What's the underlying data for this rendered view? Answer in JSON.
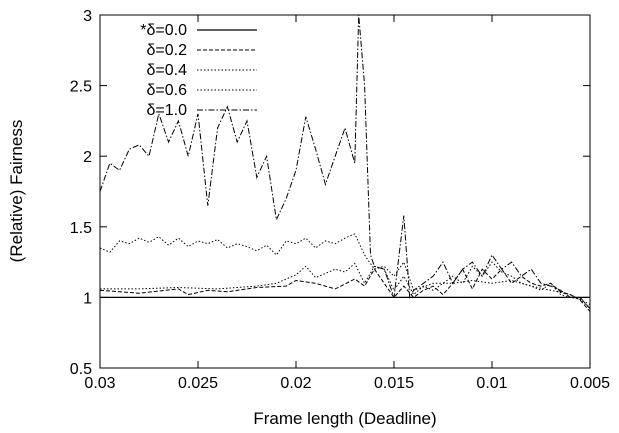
{
  "chart_data": {
    "type": "line",
    "xlabel": "Frame length (Deadline)",
    "ylabel": "(Relative) Fairness",
    "xlim": [
      0.03,
      0.005
    ],
    "ylim": [
      0.5,
      3
    ],
    "x_reversed": true,
    "grid": false,
    "legend_position": "top-left",
    "x_ticks": [
      0.03,
      0.025,
      0.02,
      0.015,
      0.01,
      0.005
    ],
    "x_tick_labels": [
      "0.03",
      "0.025",
      "0.02",
      "0.015",
      "0.01",
      "0.005"
    ],
    "y_ticks": [
      0.5,
      1,
      1.5,
      2,
      2.5,
      3
    ],
    "y_tick_labels": [
      "0.5",
      "1",
      "1.5",
      "2",
      "2.5",
      "3"
    ],
    "series": [
      {
        "name": "*δ=0.0",
        "dash": "solid",
        "x": [
          0.03,
          0.005
        ],
        "y": [
          1.0,
          1.0
        ]
      },
      {
        "name": "δ=0.2",
        "dash": "dashed",
        "x": [
          0.03,
          0.028,
          0.026,
          0.0255,
          0.0245,
          0.0235,
          0.022,
          0.0205,
          0.02,
          0.019,
          0.018,
          0.017,
          0.0165,
          0.016,
          0.0155,
          0.015,
          0.0145,
          0.014,
          0.0135,
          0.013,
          0.0125,
          0.012,
          0.0115,
          0.011,
          0.0105,
          0.01,
          0.0095,
          0.009,
          0.0085,
          0.008,
          0.0075,
          0.007,
          0.0065,
          0.006,
          0.0055,
          0.005
        ],
        "y": [
          1.05,
          1.03,
          1.06,
          1.02,
          1.05,
          1.04,
          1.07,
          1.08,
          1.12,
          1.1,
          1.06,
          1.13,
          1.08,
          1.2,
          1.1,
          1.0,
          1.08,
          1.0,
          1.05,
          1.08,
          1.02,
          1.1,
          1.2,
          1.06,
          1.2,
          1.13,
          1.2,
          1.1,
          1.15,
          1.1,
          1.08,
          1.1,
          1.04,
          1.02,
          0.98,
          0.9
        ]
      },
      {
        "name": "δ=0.4",
        "dash": "dotted",
        "x": [
          0.03,
          0.028,
          0.026,
          0.024,
          0.022,
          0.021,
          0.02,
          0.0195,
          0.019,
          0.018,
          0.0175,
          0.017,
          0.0165,
          0.016,
          0.0155,
          0.015,
          0.0145,
          0.014,
          0.0135,
          0.013,
          0.0125,
          0.012,
          0.0115,
          0.011,
          0.0105,
          0.01,
          0.0095,
          0.009,
          0.0085,
          0.008,
          0.0075,
          0.007,
          0.0065,
          0.006,
          0.0055,
          0.005
        ],
        "y": [
          1.06,
          1.06,
          1.07,
          1.06,
          1.08,
          1.1,
          1.16,
          1.22,
          1.14,
          1.2,
          1.18,
          1.24,
          1.1,
          1.22,
          1.2,
          1.05,
          1.15,
          1.02,
          1.08,
          1.05,
          1.1,
          1.15,
          1.1,
          1.22,
          1.15,
          1.25,
          1.18,
          1.15,
          1.1,
          1.08,
          1.05,
          1.1,
          1.02,
          1.0,
          0.99,
          0.92
        ]
      },
      {
        "name": "δ=0.6",
        "dash": "dotted",
        "x": [
          0.03,
          0.0295,
          0.029,
          0.0285,
          0.028,
          0.0275,
          0.027,
          0.0265,
          0.026,
          0.0255,
          0.025,
          0.0245,
          0.024,
          0.0235,
          0.023,
          0.0225,
          0.022,
          0.0215,
          0.021,
          0.0205,
          0.02,
          0.0195,
          0.019,
          0.0185,
          0.018,
          0.0175,
          0.017,
          0.0165,
          0.016,
          0.0155,
          0.015,
          0.0145,
          0.014,
          0.013,
          0.012,
          0.011,
          0.01,
          0.009,
          0.008,
          0.007,
          0.006,
          0.005
        ],
        "y": [
          1.35,
          1.32,
          1.4,
          1.38,
          1.42,
          1.39,
          1.43,
          1.37,
          1.42,
          1.36,
          1.4,
          1.38,
          1.41,
          1.35,
          1.38,
          1.36,
          1.33,
          1.37,
          1.3,
          1.4,
          1.38,
          1.42,
          1.35,
          1.4,
          1.38,
          1.42,
          1.45,
          1.3,
          1.2,
          1.22,
          1.15,
          1.25,
          1.05,
          1.1,
          1.1,
          1.12,
          1.1,
          1.12,
          1.08,
          1.05,
          1.02,
          0.95
        ]
      },
      {
        "name": "δ=1.0",
        "dash": "dashdot",
        "x": [
          0.03,
          0.0295,
          0.029,
          0.0285,
          0.028,
          0.0275,
          0.027,
          0.0265,
          0.026,
          0.0255,
          0.025,
          0.0245,
          0.024,
          0.0235,
          0.023,
          0.0225,
          0.022,
          0.0215,
          0.021,
          0.0205,
          0.02,
          0.0195,
          0.019,
          0.0185,
          0.018,
          0.0175,
          0.017,
          0.0168,
          0.0165,
          0.0162,
          0.016,
          0.0155,
          0.015,
          0.0145,
          0.0142,
          0.014,
          0.0135,
          0.013,
          0.0125,
          0.012,
          0.0115,
          0.011,
          0.0105,
          0.01,
          0.0095,
          0.009,
          0.0085,
          0.008,
          0.0075,
          0.007,
          0.0065,
          0.006,
          0.0055,
          0.005
        ],
        "y": [
          1.75,
          1.95,
          1.9,
          2.05,
          2.08,
          2.0,
          2.3,
          2.1,
          2.25,
          2.0,
          2.3,
          1.65,
          2.2,
          2.35,
          2.1,
          2.25,
          1.85,
          2.0,
          1.55,
          1.7,
          1.9,
          2.28,
          2.05,
          1.8,
          2.0,
          2.2,
          1.95,
          3.0,
          2.5,
          1.3,
          1.22,
          1.2,
          1.0,
          1.58,
          1.0,
          1.05,
          1.1,
          1.15,
          1.25,
          1.1,
          1.2,
          1.25,
          1.15,
          1.3,
          1.2,
          1.25,
          1.15,
          1.2,
          1.1,
          1.08,
          1.05,
          1.0,
          1.0,
          0.92
        ]
      }
    ]
  }
}
